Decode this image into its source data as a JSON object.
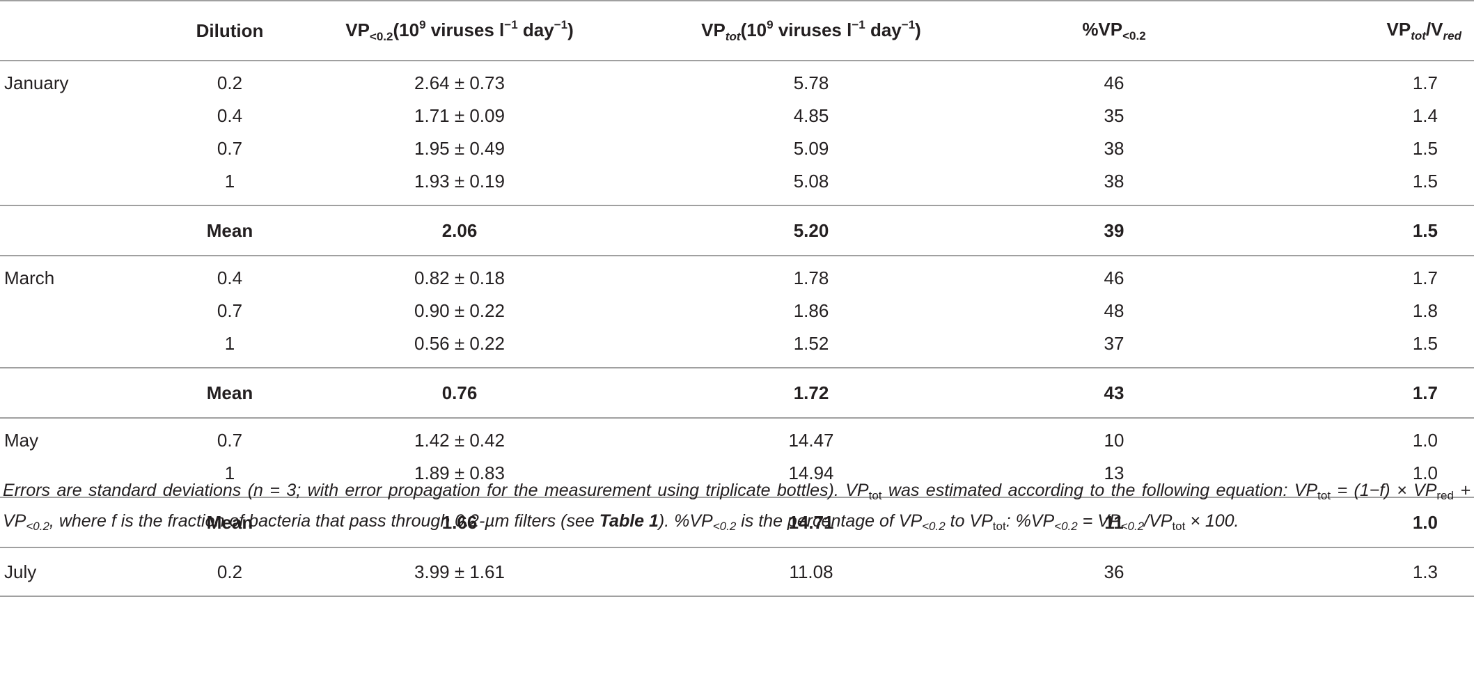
{
  "headers": {
    "dilution": "Dilution",
    "vp_small": {
      "main": "VP",
      "sub": "<0.2",
      "pre": "(10",
      "exp": "9",
      "mid": " viruses l",
      "exp2": "−1",
      "mid2": " day",
      "exp3": "−1",
      "post": ")"
    },
    "vp_tot": {
      "main": "VP",
      "sub": "tot",
      "pre": "(10",
      "exp": "9",
      "mid": " viruses l",
      "exp2": "−1",
      "mid2": " day",
      "exp3": "−1",
      "post": ")"
    },
    "pct": {
      "main": "%VP",
      "sub": "<0.2"
    },
    "ratio": {
      "main": "VP",
      "sub": "tot",
      "slash": "/V",
      "sub2": "red"
    }
  },
  "rows": [
    {
      "month": "January",
      "dilution": "0.2",
      "vp_small": "2.64 ± 0.73",
      "vp_tot": "5.78",
      "pct": "46",
      "ratio": "1.7"
    },
    {
      "month": "",
      "dilution": "0.4",
      "vp_small": "1.71 ± 0.09",
      "vp_tot": "4.85",
      "pct": "35",
      "ratio": "1.4"
    },
    {
      "month": "",
      "dilution": "0.7",
      "vp_small": "1.95 ± 0.49",
      "vp_tot": "5.09",
      "pct": "38",
      "ratio": "1.5"
    },
    {
      "month": "",
      "dilution": "1",
      "vp_small": "1.93 ± 0.19",
      "vp_tot": "5.08",
      "pct": "38",
      "ratio": "1.5"
    },
    {
      "month": "",
      "dilution": "Mean",
      "vp_small": "2.06",
      "vp_tot": "5.20",
      "pct": "39",
      "ratio": "1.5"
    },
    {
      "month": "March",
      "dilution": "0.4",
      "vp_small": "0.82 ± 0.18",
      "vp_tot": "1.78",
      "pct": "46",
      "ratio": "1.7"
    },
    {
      "month": "",
      "dilution": "0.7",
      "vp_small": "0.90 ± 0.22",
      "vp_tot": "1.86",
      "pct": "48",
      "ratio": "1.8"
    },
    {
      "month": "",
      "dilution": "1",
      "vp_small": "0.56 ± 0.22",
      "vp_tot": "1.52",
      "pct": "37",
      "ratio": "1.5"
    },
    {
      "month": "",
      "dilution": "Mean",
      "vp_small": "0.76",
      "vp_tot": "1.72",
      "pct": "43",
      "ratio": "1.7"
    },
    {
      "month": "May",
      "dilution": "0.7",
      "vp_small": "1.42 ± 0.42",
      "vp_tot": "14.47",
      "pct": "10",
      "ratio": "1.0"
    },
    {
      "month": "",
      "dilution": "1",
      "vp_small": "1.89 ± 0.83",
      "vp_tot": "14.94",
      "pct": "13",
      "ratio": "1.0"
    },
    {
      "month": "",
      "dilution": "Mean",
      "vp_small": "1.66",
      "vp_tot": "14.71",
      "pct": "11",
      "ratio": "1.0"
    },
    {
      "month": "July",
      "dilution": "0.2",
      "vp_small": "3.99 ± 1.61",
      "vp_tot": "11.08",
      "pct": "36",
      "ratio": "1.3"
    }
  ],
  "footnote": {
    "s1": "Errors are standard deviations (n = 3; with error propagation for the measurement using triplicate bottles). VP",
    "tot": "tot",
    "s2": " was estimated according to the following equation: VP",
    "s3": " = (1−f) × VP",
    "red": "red",
    "s4": " + VP",
    "lt02": "<0.2",
    "s5": ", where f is the fraction of bacteria that pass through 0.2-µm filters (see ",
    "table_ref": "Table 1",
    "s6": "). %VP",
    "s7": " is the percentage of VP",
    "s8": " to VP",
    "s9": ": %VP",
    "s10": " = VP",
    "s11": "/VP",
    "s12": " × 100."
  }
}
